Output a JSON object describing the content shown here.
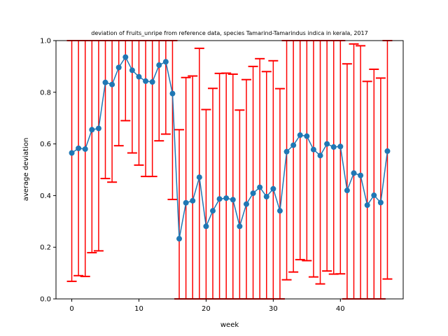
{
  "chart_data": {
    "type": "line",
    "title": "deviation of Fruits_unripe from reference data, species Tamarind-Tamarindus indica in kerala, 2017",
    "xlabel": "week",
    "ylabel": "average deviation",
    "xlim": [
      -2.35,
      49.35
    ],
    "ylim": [
      0,
      1.0
    ],
    "xticks": [
      0,
      10,
      20,
      30,
      40
    ],
    "yticks": [
      0.0,
      0.2,
      0.4,
      0.6,
      0.8,
      1.0
    ],
    "xtick_labels": [
      "0",
      "10",
      "20",
      "30",
      "40"
    ],
    "ytick_labels": [
      "0.0",
      "0.2",
      "0.4",
      "0.6",
      "0.8",
      "1.0"
    ],
    "grid": false,
    "colors": {
      "line": "#1f77b4",
      "errorbar": "#ff0000"
    },
    "x": [
      0,
      1,
      2,
      3,
      4,
      5,
      6,
      7,
      8,
      9,
      10,
      11,
      12,
      13,
      14,
      15,
      16,
      17,
      18,
      19,
      20,
      21,
      22,
      23,
      24,
      25,
      26,
      27,
      28,
      29,
      30,
      31,
      32,
      33,
      34,
      35,
      36,
      37,
      38,
      39,
      40,
      41,
      42,
      43,
      44,
      45,
      46,
      47
    ],
    "y": [
      0.565,
      0.583,
      0.58,
      0.655,
      0.66,
      0.838,
      0.83,
      0.896,
      0.936,
      0.885,
      0.86,
      0.843,
      0.84,
      0.905,
      0.918,
      0.795,
      0.233,
      0.372,
      0.38,
      0.471,
      0.281,
      0.341,
      0.387,
      0.39,
      0.384,
      0.281,
      0.367,
      0.409,
      0.432,
      0.396,
      0.426,
      0.341,
      0.57,
      0.595,
      0.634,
      0.63,
      0.578,
      0.555,
      0.6,
      0.588,
      0.59,
      0.42,
      0.487,
      0.478,
      0.363,
      0.401,
      0.373,
      0.572
    ],
    "err_low": [
      0.068,
      0.09,
      0.087,
      0.179,
      0.186,
      0.466,
      0.452,
      0.593,
      0.69,
      0.565,
      0.518,
      0.474,
      0.474,
      0.612,
      0.638,
      0.385,
      0.0,
      0.0,
      0.0,
      0.0,
      0.0,
      0.0,
      0.0,
      0.0,
      0.0,
      0.0,
      0.0,
      0.0,
      0.0,
      0.0,
      0.0,
      0.0,
      0.074,
      0.104,
      0.152,
      0.148,
      0.085,
      0.058,
      0.108,
      0.096,
      0.097,
      0.0,
      0.0,
      0.0,
      0.0,
      0.0,
      0.0,
      0.077
    ],
    "err_high": [
      1.0,
      1.0,
      1.0,
      1.0,
      1.0,
      1.0,
      1.0,
      1.0,
      1.0,
      1.0,
      1.0,
      1.0,
      1.0,
      1.0,
      1.0,
      1.0,
      0.655,
      0.857,
      0.863,
      0.97,
      0.733,
      0.815,
      0.873,
      0.874,
      0.87,
      0.731,
      0.849,
      0.9,
      0.93,
      0.88,
      0.922,
      0.814,
      1.0,
      1.0,
      1.0,
      1.0,
      1.0,
      1.0,
      1.0,
      1.0,
      1.0,
      0.91,
      0.987,
      0.98,
      0.842,
      0.889,
      0.855,
      1.0
    ]
  }
}
